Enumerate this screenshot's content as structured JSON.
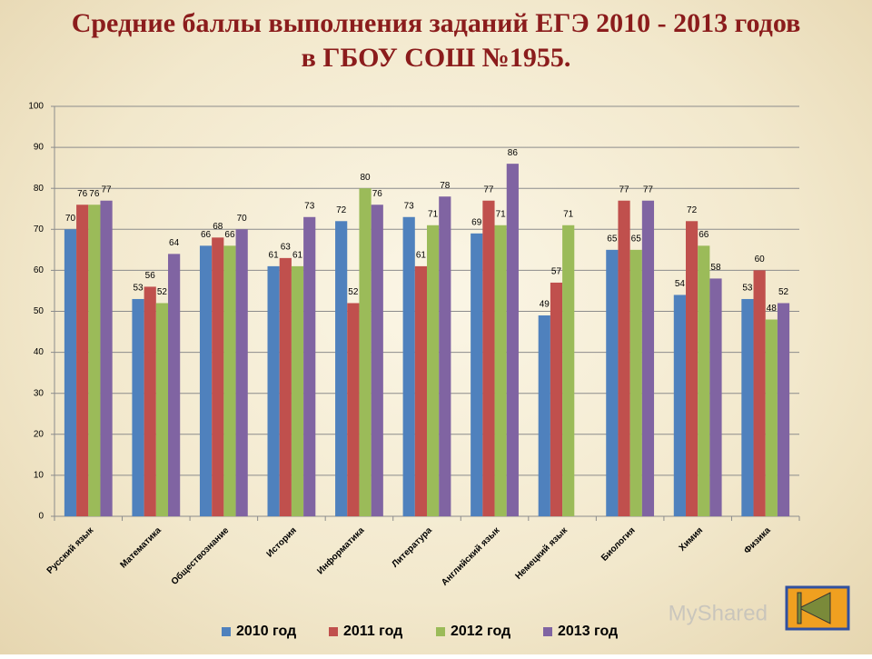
{
  "chart_data": {
    "type": "bar",
    "title": [
      "Средние баллы выполнения заданий  ЕГЭ 2010 - 2013 годов",
      "в ГБОУ СОШ №1955."
    ],
    "categories": [
      "Русский язык",
      "Математика",
      "Обществознание",
      "История",
      "Информатика",
      "Литература",
      "Английский язык",
      "Немецкий язык",
      "Биология",
      "Химия",
      "Физика"
    ],
    "series": [
      {
        "name": "2010 год",
        "color": "#4f81bd",
        "values": [
          70,
          53,
          66,
          61,
          72,
          73,
          69,
          49,
          65,
          54,
          53
        ]
      },
      {
        "name": "2011 год",
        "color": "#c0504d",
        "values": [
          76,
          56,
          68,
          63,
          52,
          61,
          77,
          57,
          77,
          72,
          60
        ]
      },
      {
        "name": "2012 год",
        "color": "#9bbb59",
        "values": [
          76,
          52,
          66,
          61,
          80,
          71,
          71,
          71,
          65,
          66,
          48
        ]
      },
      {
        "name": "2013 год",
        "color": "#8064a2",
        "values": [
          77,
          64,
          70,
          73,
          76,
          78,
          86,
          null,
          77,
          58,
          52
        ]
      }
    ],
    "ylim": [
      0,
      100
    ],
    "yticks": [
      0,
      10,
      20,
      30,
      40,
      50,
      60,
      70,
      80,
      90,
      100
    ],
    "grid": true,
    "legend": "bottom"
  },
  "watermark": "MyShared"
}
